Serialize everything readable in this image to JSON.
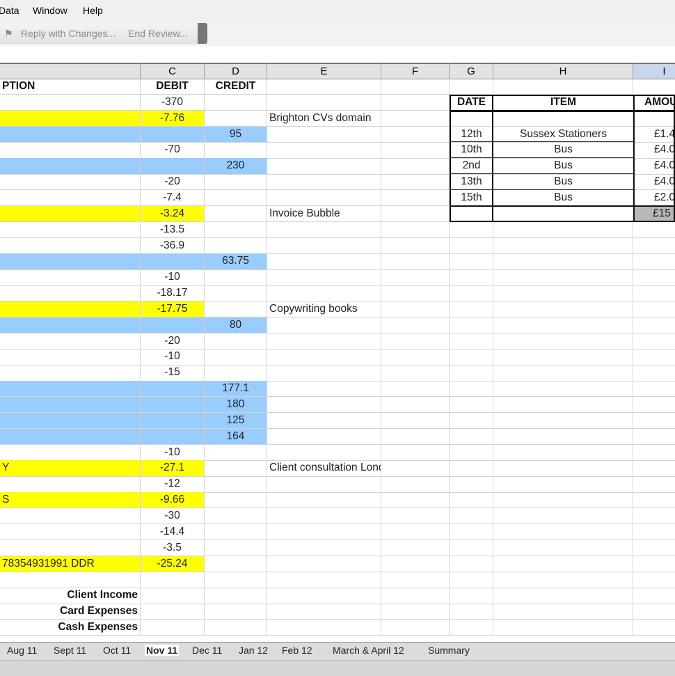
{
  "menu": {
    "items": [
      "Data",
      "Window",
      "Help"
    ]
  },
  "toolbar": {
    "reply": "Reply with Changes...",
    "end_review": "End Review..."
  },
  "columns": [
    "C",
    "D",
    "E",
    "F",
    "G",
    "H",
    "I"
  ],
  "colors": {
    "yellow": "#ffff00",
    "blue": "#99ccff"
  },
  "rows": [
    {
      "B": "PTION",
      "C": "DEBIT",
      "D": "CREDIT",
      "bold": true
    },
    {
      "C": "-370"
    },
    {
      "hl": "yellow",
      "C": "-7.76",
      "E": "Brighton CVs domain"
    },
    {
      "hl": "blue",
      "D": "95"
    },
    {
      "C": "-70"
    },
    {
      "hl": "blue",
      "D": "230"
    },
    {
      "C": "-20"
    },
    {
      "C": "-7.4"
    },
    {
      "hl": "yellow",
      "C": "-3.24",
      "E": "Invoice Bubble"
    },
    {
      "C": "-13.5"
    },
    {
      "C": "-36.9"
    },
    {
      "hl": "blue",
      "D": "63.75"
    },
    {
      "C": "-10"
    },
    {
      "C": "-18.17"
    },
    {
      "hl": "yellow",
      "C": "-17.75",
      "E": "Copywriting books"
    },
    {
      "hl": "blue",
      "D": "80"
    },
    {
      "C": "-20"
    },
    {
      "C": "-10"
    },
    {
      "C": "-15"
    },
    {
      "hl": "blue",
      "D": "177.1"
    },
    {
      "hl": "blue",
      "D": "180"
    },
    {
      "hl": "blue",
      "D": "125"
    },
    {
      "hl": "blue",
      "D": "164"
    },
    {
      "C": "-10"
    },
    {
      "hl": "yellow",
      "B": "Y",
      "C": "-27.1",
      "E": "Client consultation London"
    },
    {
      "C": "-12"
    },
    {
      "hl": "yellow",
      "B": "S",
      "C": "-9.66"
    },
    {
      "C": "-30"
    },
    {
      "C": "-14.4"
    },
    {
      "C": "-3.5"
    },
    {
      "hl": "yellow",
      "B": "78354931991 DDR",
      "C": "-25.24"
    },
    {},
    {
      "B": "Client Income",
      "total": true
    },
    {
      "B": "Card Expenses",
      "total": true
    },
    {
      "B": "Cash Expenses",
      "total": true
    }
  ],
  "cash_table": {
    "headers": {
      "date": "DATE",
      "item": "ITEM",
      "amount": "AMOU"
    },
    "entries": [
      {
        "date": "12th",
        "item": "Sussex Stationers",
        "amount": "£1.4"
      },
      {
        "date": "10th",
        "item": "Bus",
        "amount": "£4.0"
      },
      {
        "date": "2nd",
        "item": "Bus",
        "amount": "£4.0"
      },
      {
        "date": "13th",
        "item": "Bus",
        "amount": "£4.0"
      },
      {
        "date": "15th",
        "item": "Bus",
        "amount": "£2.0"
      }
    ],
    "total": "£15"
  },
  "sheet_tabs": [
    "Aug 11",
    "Sept 11",
    "Oct 11",
    "Nov 11",
    "Dec 11",
    "Jan 12",
    "Feb 12",
    "March & April 12",
    "Summary"
  ],
  "active_tab": "Nov 11"
}
